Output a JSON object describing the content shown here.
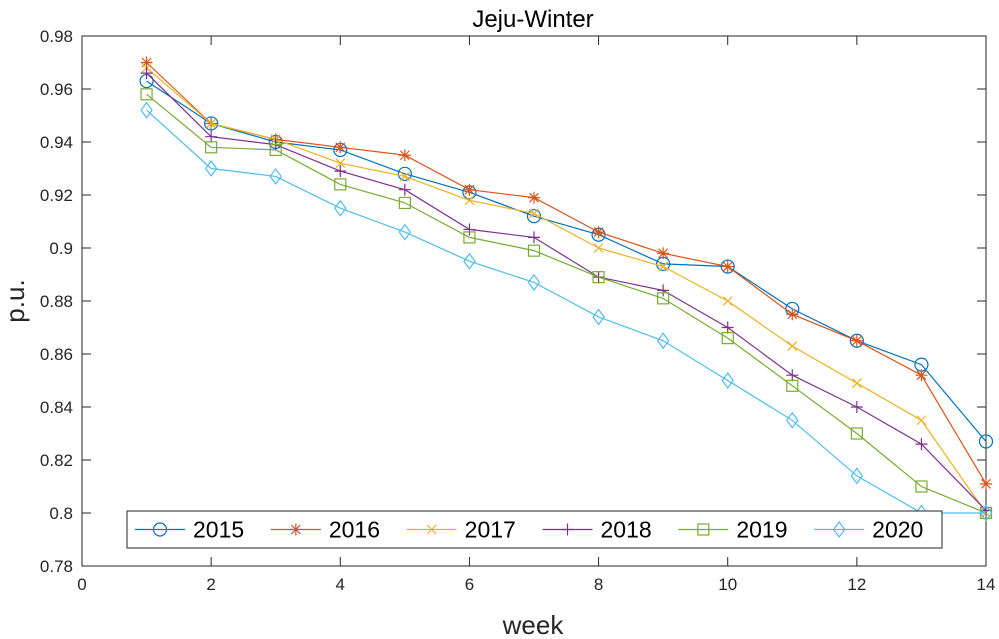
{
  "chart_data": {
    "type": "line",
    "title": "Jeju-Winter",
    "xlabel": "week",
    "ylabel": "p.u.",
    "xlim": [
      0,
      14
    ],
    "ylim": [
      0.78,
      0.98
    ],
    "xticks": [
      0,
      2,
      4,
      6,
      8,
      10,
      12,
      14
    ],
    "yticks": [
      0.78,
      0.8,
      0.82,
      0.84,
      0.86,
      0.88,
      0.9,
      0.92,
      0.94,
      0.96,
      0.98
    ],
    "ytick_labels": [
      "0.78",
      "0.8",
      "0.82",
      "0.84",
      "0.86",
      "0.88",
      "0.9",
      "0.92",
      "0.94",
      "0.96",
      "0.98"
    ],
    "grid": false,
    "legend": "bottom, horizontal",
    "x": [
      1,
      2,
      3,
      4,
      5,
      6,
      7,
      8,
      9,
      10,
      11,
      12,
      13,
      14
    ],
    "series": [
      {
        "name": "2015",
        "color": "#0072BD",
        "marker": "circle",
        "values": [
          0.963,
          0.947,
          0.94,
          0.937,
          0.928,
          0.921,
          0.912,
          0.905,
          0.894,
          0.893,
          0.877,
          0.865,
          0.856,
          0.827
        ]
      },
      {
        "name": "2016",
        "color": "#D95319",
        "marker": "asterisk",
        "values": [
          0.97,
          0.947,
          0.941,
          0.938,
          0.935,
          0.922,
          0.919,
          0.906,
          0.898,
          0.893,
          0.875,
          0.865,
          0.852,
          0.811
        ]
      },
      {
        "name": "2017",
        "color": "#EDB120",
        "marker": "cross",
        "values": [
          0.968,
          0.947,
          0.941,
          0.932,
          0.927,
          0.918,
          0.913,
          0.9,
          0.893,
          0.88,
          0.863,
          0.849,
          0.835,
          0.8
        ]
      },
      {
        "name": "2018",
        "color": "#7E2F8E",
        "marker": "plus",
        "values": [
          0.966,
          0.942,
          0.939,
          0.929,
          0.922,
          0.907,
          0.904,
          0.889,
          0.884,
          0.87,
          0.852,
          0.84,
          0.826,
          0.801
        ]
      },
      {
        "name": "2019",
        "color": "#77AC30",
        "marker": "square",
        "values": [
          0.958,
          0.938,
          0.937,
          0.924,
          0.917,
          0.904,
          0.899,
          0.889,
          0.881,
          0.866,
          0.848,
          0.83,
          0.81,
          0.8
        ]
      },
      {
        "name": "2020",
        "color": "#4DBEEE",
        "marker": "diamond",
        "values": [
          0.952,
          0.93,
          0.927,
          0.915,
          0.906,
          0.895,
          0.887,
          0.874,
          0.865,
          0.85,
          0.835,
          0.814,
          0.8,
          0.8
        ]
      }
    ]
  }
}
